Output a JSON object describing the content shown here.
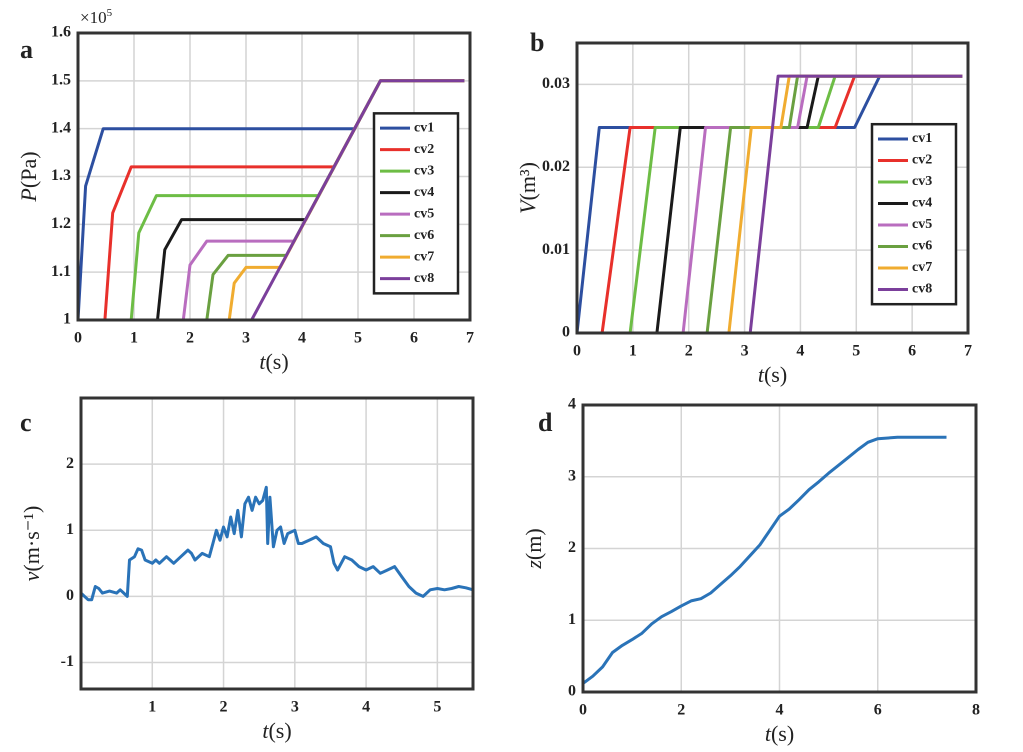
{
  "chart_data": [
    {
      "type": "line",
      "label": "a",
      "xlabel": {
        "symbol": "t",
        "unit": "(s)"
      },
      "ylabel": {
        "symbol": "P",
        "unit": "(Pa)"
      },
      "y_multiplier": {
        "base": "×10",
        "exponent": "5"
      },
      "xlim": [
        0,
        7
      ],
      "ylim": [
        1,
        1.6
      ],
      "xticks": [
        0,
        1,
        2,
        3,
        4,
        5,
        6,
        7
      ],
      "yticks": [
        1,
        1.1,
        1.2,
        1.3,
        1.4,
        1.5,
        1.6
      ],
      "grid": true,
      "legend": "east",
      "series": [
        {
          "name": "cv1",
          "color": "#2d4fa0",
          "x": [
            0,
            0.135,
            0.45,
            4.94,
            5.4,
            6.9
          ],
          "values": [
            1,
            1.28,
            1.4,
            1.4,
            1.5,
            1.5
          ]
        },
        {
          "name": "cv2",
          "color": "#e8302b",
          "x": [
            0,
            0.48,
            0.62,
            0.95,
            4.57,
            5.4,
            6.9
          ],
          "values": [
            1,
            1,
            1.224,
            1.32,
            1.32,
            1.5,
            1.5
          ]
        },
        {
          "name": "cv3",
          "color": "#6dbd45",
          "x": [
            0,
            0.95,
            1.085,
            1.4,
            4.3,
            5.4,
            6.9
          ],
          "values": [
            1,
            1,
            1.182,
            1.26,
            1.26,
            1.5,
            1.5
          ]
        },
        {
          "name": "cv4",
          "color": "#1a1a1a",
          "x": [
            0,
            1.42,
            1.55,
            1.85,
            4.07,
            5.4,
            6.9
          ],
          "values": [
            1,
            1,
            1.147,
            1.21,
            1.21,
            1.5,
            1.5
          ]
        },
        {
          "name": "cv5",
          "color": "#b96dbf",
          "x": [
            0,
            1.88,
            2.0,
            2.3,
            3.86,
            5.4,
            6.9
          ],
          "values": [
            1,
            1,
            1.115,
            1.165,
            1.165,
            1.5,
            1.5
          ]
        },
        {
          "name": "cv6",
          "color": "#6aa040",
          "x": [
            0,
            2.3,
            2.41,
            2.68,
            3.72,
            5.4,
            6.9
          ],
          "values": [
            1,
            1,
            1.095,
            1.135,
            1.135,
            1.5,
            1.5
          ]
        },
        {
          "name": "cv7",
          "color": "#f0ac30",
          "x": [
            0,
            2.7,
            2.79,
            3.0,
            3.61,
            5.4,
            6.9
          ],
          "values": [
            1,
            1,
            1.077,
            1.11,
            1.11,
            1.5,
            1.5
          ]
        },
        {
          "name": "cv8",
          "color": "#7b3f9b",
          "x": [
            0,
            3.1,
            5.4,
            6.9
          ],
          "values": [
            1,
            1,
            1.5,
            1.5
          ]
        }
      ]
    },
    {
      "type": "line",
      "label": "b",
      "xlabel": {
        "symbol": "t",
        "unit": "(s)"
      },
      "ylabel": {
        "symbol": "V",
        "unit": "(m³)"
      },
      "xlim": [
        0,
        7
      ],
      "ylim": [
        0,
        0.035
      ],
      "xticks": [
        0,
        1,
        2,
        3,
        4,
        5,
        6,
        7
      ],
      "yticks": [
        0,
        0.01,
        0.02,
        0.03
      ],
      "grid": true,
      "legend": "east",
      "series": [
        {
          "name": "cv1",
          "color": "#2d4fa0",
          "x": [
            0,
            0.4,
            4.97,
            5.42,
            6.9
          ],
          "values": [
            0,
            0.0248,
            0.0248,
            0.031,
            0.031
          ]
        },
        {
          "name": "cv2",
          "color": "#e8302b",
          "x": [
            0,
            0.45,
            0.95,
            4.62,
            4.97,
            6.9
          ],
          "values": [
            0,
            0,
            0.0248,
            0.0248,
            0.031,
            0.031
          ]
        },
        {
          "name": "cv3",
          "color": "#6dbd45",
          "x": [
            0,
            0.95,
            1.4,
            4.32,
            4.62,
            6.9
          ],
          "values": [
            0,
            0,
            0.0248,
            0.0248,
            0.031,
            0.031
          ]
        },
        {
          "name": "cv4",
          "color": "#1a1a1a",
          "x": [
            0,
            1.43,
            1.85,
            4.12,
            4.32,
            6.9
          ],
          "values": [
            0,
            0,
            0.0248,
            0.0248,
            0.031,
            0.031
          ]
        },
        {
          "name": "cv5",
          "color": "#b96dbf",
          "x": [
            0,
            1.9,
            2.3,
            3.95,
            4.12,
            6.9
          ],
          "values": [
            0,
            0,
            0.0248,
            0.0248,
            0.031,
            0.031
          ]
        },
        {
          "name": "cv6",
          "color": "#6aa040",
          "x": [
            0,
            2.33,
            2.75,
            3.8,
            3.95,
            6.9
          ],
          "values": [
            0,
            0,
            0.0248,
            0.0248,
            0.031,
            0.031
          ]
        },
        {
          "name": "cv7",
          "color": "#f0ac30",
          "x": [
            0,
            2.72,
            3.12,
            3.65,
            3.8,
            6.9
          ],
          "values": [
            0,
            0,
            0.0248,
            0.0248,
            0.031,
            0.031
          ]
        },
        {
          "name": "cv8",
          "color": "#7b3f9b",
          "x": [
            0,
            3.1,
            3.6,
            6.9
          ],
          "values": [
            0,
            0,
            0.031,
            0.031
          ]
        }
      ]
    },
    {
      "type": "line",
      "label": "c",
      "xlabel": {
        "symbol": "t",
        "unit": "(s)"
      },
      "ylabel": {
        "symbol": "v",
        "unit": "(m·s⁻¹)"
      },
      "xlim": [
        0,
        5.5
      ],
      "ylim": [
        -1.4,
        3
      ],
      "xticks": [
        1,
        2,
        3,
        4,
        5
      ],
      "yticks": [
        -1,
        0,
        1,
        2
      ],
      "grid": true,
      "color": "#2a73b8",
      "x": [
        0,
        0.1,
        0.15,
        0.2,
        0.25,
        0.3,
        0.4,
        0.5,
        0.55,
        0.6,
        0.65,
        0.68,
        0.75,
        0.8,
        0.85,
        0.9,
        1.0,
        1.05,
        1.1,
        1.2,
        1.25,
        1.3,
        1.4,
        1.5,
        1.55,
        1.6,
        1.7,
        1.8,
        1.85,
        1.9,
        1.95,
        2.0,
        2.05,
        2.1,
        2.15,
        2.2,
        2.25,
        2.3,
        2.35,
        2.4,
        2.45,
        2.5,
        2.55,
        2.6,
        2.62,
        2.65,
        2.7,
        2.75,
        2.8,
        2.85,
        2.9,
        3.0,
        3.05,
        3.1,
        3.2,
        3.3,
        3.4,
        3.5,
        3.55,
        3.6,
        3.7,
        3.8,
        3.9,
        4.0,
        4.1,
        4.2,
        4.3,
        4.4,
        4.5,
        4.6,
        4.7,
        4.8,
        4.9,
        5.0,
        5.1,
        5.2,
        5.3,
        5.4,
        5.5
      ],
      "values": [
        0.05,
        -0.05,
        -0.05,
        0.15,
        0.12,
        0.05,
        0.08,
        0.05,
        0.1,
        0.05,
        0.0,
        0.55,
        0.6,
        0.72,
        0.7,
        0.55,
        0.5,
        0.55,
        0.5,
        0.6,
        0.55,
        0.5,
        0.6,
        0.7,
        0.65,
        0.55,
        0.65,
        0.6,
        0.8,
        1.0,
        0.85,
        1.05,
        0.9,
        1.2,
        0.95,
        1.3,
        0.9,
        1.4,
        1.5,
        1.3,
        1.5,
        1.4,
        1.45,
        1.65,
        0.8,
        1.5,
        0.75,
        1.0,
        1.05,
        0.8,
        0.95,
        1.0,
        0.8,
        0.8,
        0.85,
        0.9,
        0.8,
        0.75,
        0.5,
        0.4,
        0.6,
        0.55,
        0.45,
        0.4,
        0.45,
        0.35,
        0.4,
        0.45,
        0.3,
        0.15,
        0.05,
        0.0,
        0.1,
        0.12,
        0.1,
        0.12,
        0.15,
        0.13,
        0.1
      ]
    },
    {
      "type": "line",
      "label": "d",
      "xlabel": {
        "symbol": "t",
        "unit": "(s)"
      },
      "ylabel": {
        "symbol": "z",
        "unit": "(m)"
      },
      "xlim": [
        0,
        8
      ],
      "ylim": [
        0,
        4
      ],
      "xticks": [
        0,
        2,
        4,
        6,
        8
      ],
      "yticks": [
        0,
        1,
        2,
        3,
        4
      ],
      "grid": true,
      "color": "#2a73b8",
      "x": [
        0,
        0.2,
        0.4,
        0.6,
        0.8,
        1.0,
        1.2,
        1.4,
        1.6,
        1.8,
        2.0,
        2.2,
        2.4,
        2.6,
        2.8,
        3.0,
        3.2,
        3.4,
        3.6,
        3.8,
        4.0,
        4.2,
        4.4,
        4.6,
        4.8,
        5.0,
        5.2,
        5.4,
        5.6,
        5.8,
        6.0,
        6.4,
        7.0,
        7.4
      ],
      "values": [
        0.12,
        0.22,
        0.35,
        0.55,
        0.65,
        0.73,
        0.82,
        0.95,
        1.05,
        1.12,
        1.2,
        1.27,
        1.3,
        1.38,
        1.5,
        1.62,
        1.75,
        1.9,
        2.05,
        2.25,
        2.45,
        2.55,
        2.68,
        2.82,
        2.93,
        3.05,
        3.16,
        3.27,
        3.38,
        3.48,
        3.53,
        3.55,
        3.55,
        3.55
      ]
    }
  ]
}
